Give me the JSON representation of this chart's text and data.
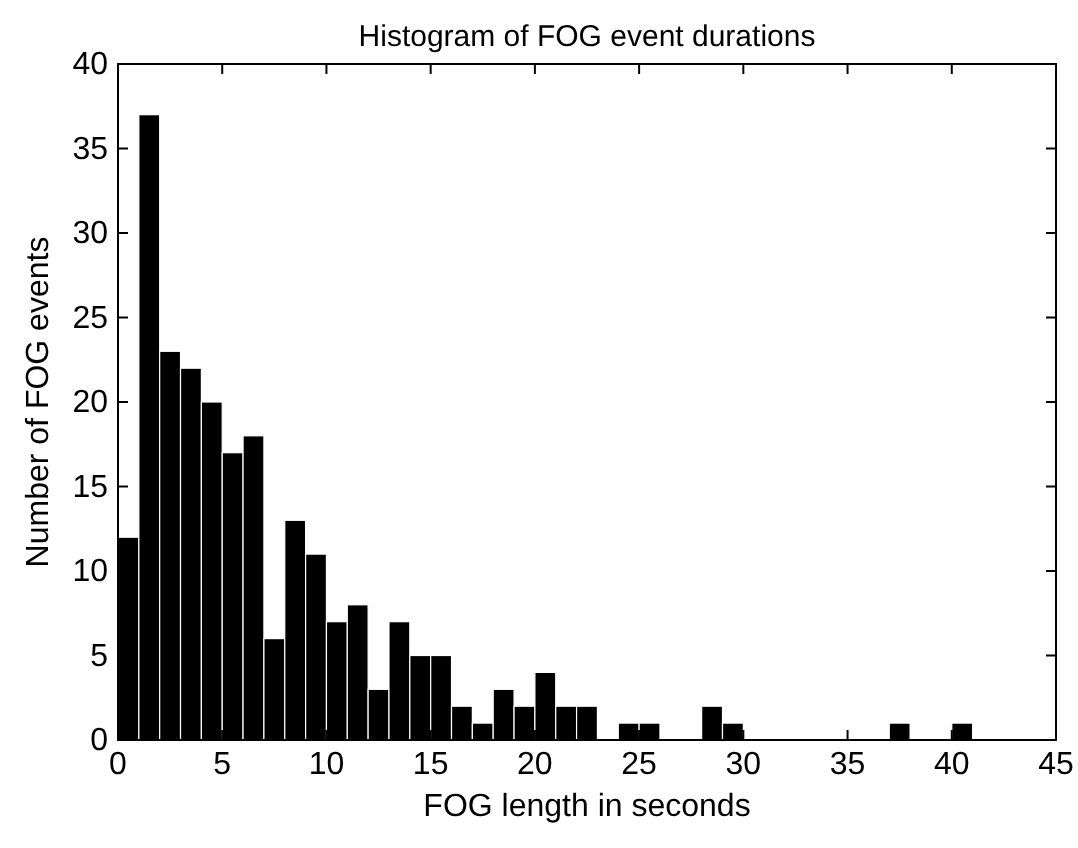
{
  "chart_data": {
    "type": "histogram",
    "title": "Histogram of FOG event durations",
    "xlabel": "FOG length in seconds",
    "ylabel": "Number of FOG events",
    "bins": [
      0,
      1,
      2,
      3,
      4,
      5,
      6,
      7,
      8,
      9,
      10,
      11,
      12,
      13,
      14,
      15,
      16,
      17,
      18,
      19,
      20,
      21,
      22,
      23,
      24,
      25,
      26,
      27,
      28,
      29,
      30,
      31,
      32,
      33,
      34,
      35,
      36,
      37,
      38,
      39,
      40,
      41
    ],
    "values": [
      12,
      37,
      23,
      22,
      20,
      17,
      18,
      6,
      13,
      11,
      7,
      8,
      3,
      7,
      5,
      5,
      2,
      1,
      3,
      2,
      4,
      2,
      2,
      0,
      1,
      1,
      0,
      0,
      2,
      1,
      0,
      0,
      0,
      0,
      0,
      0,
      0,
      1,
      0,
      0,
      1
    ],
    "color": "#000000",
    "xlim": [
      0,
      45
    ],
    "ylim": [
      0,
      40
    ],
    "xticks": [
      0,
      5,
      10,
      15,
      20,
      25,
      30,
      35,
      40,
      45
    ],
    "yticks": [
      0,
      5,
      10,
      15,
      20,
      25,
      30,
      35,
      40
    ],
    "grid": false
  }
}
